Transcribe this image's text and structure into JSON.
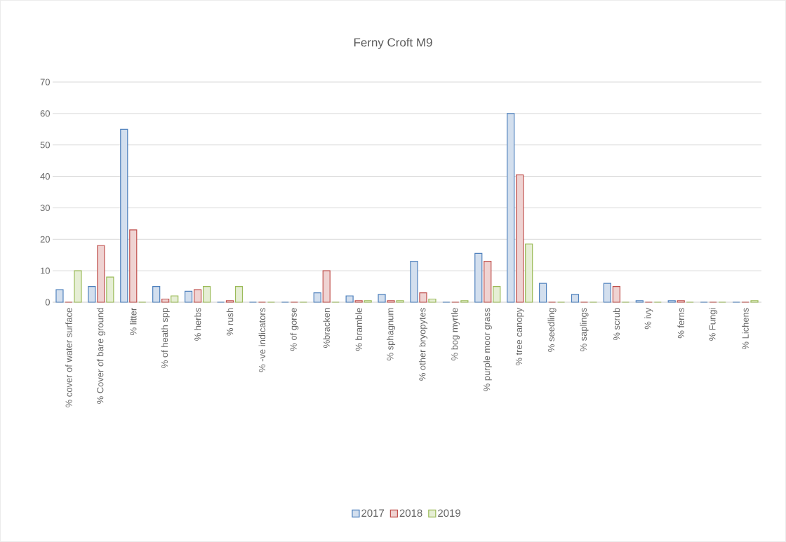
{
  "chart_data": {
    "type": "bar",
    "title": "Ferny Croft  M9",
    "categories": [
      "% cover of water  surface",
      "% Cover of bare ground",
      "% litter",
      "% of heath spp",
      "% herbs",
      "% rush",
      "% -ve indicators",
      "% of gorse",
      "%bracken",
      "% bramble",
      "% sphagnum",
      "% other  bryopytes",
      "% bog myrtle",
      "% purple moor grass",
      "% tree  canopy",
      "% seedling",
      "% saplings",
      "% scrub",
      "% ivy",
      "% ferns",
      "% Fungi",
      "% Lichens"
    ],
    "series": [
      {
        "name": "2017",
        "color": "#4f81bd",
        "values": [
          4,
          5,
          55,
          5,
          3.5,
          0,
          0,
          0,
          3,
          2,
          2.5,
          13,
          0,
          15.5,
          60,
          6,
          2.5,
          6,
          0.5,
          0.5,
          0,
          0
        ]
      },
      {
        "name": "2018",
        "color": "#c0504d",
        "values": [
          0,
          18,
          23,
          1,
          4,
          0.5,
          0,
          0,
          10,
          0.5,
          0.5,
          3,
          0,
          13,
          40.5,
          0,
          0,
          5,
          0,
          0.5,
          0,
          0
        ]
      },
      {
        "name": "2019",
        "color": "#9bbb59",
        "values": [
          10,
          8,
          0,
          2,
          5,
          5,
          0,
          0,
          0,
          0.5,
          0.5,
          1,
          0.5,
          5,
          18.5,
          0,
          0,
          0,
          0,
          0,
          0,
          0.5
        ]
      }
    ],
    "ylim": [
      0,
      70
    ],
    "yticks": [
      0,
      10,
      20,
      30,
      40,
      50,
      60,
      70
    ],
    "grid": "y",
    "legend": "bottom"
  }
}
